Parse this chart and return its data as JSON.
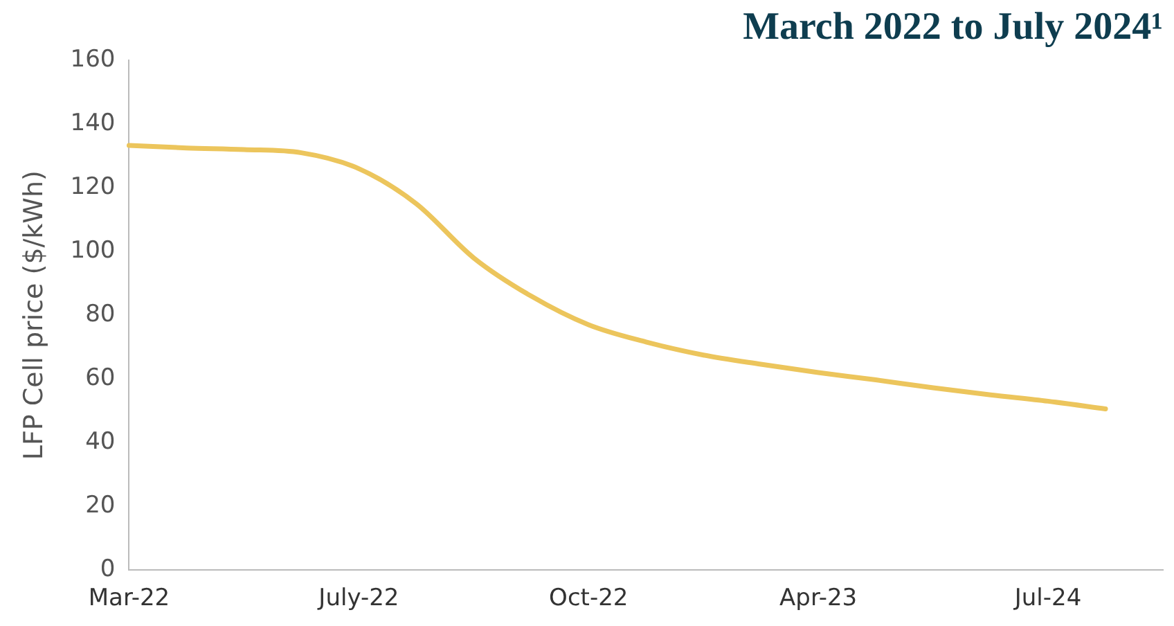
{
  "chart_data": {
    "type": "line",
    "title": "March 2022 to July 2024¹",
    "ylabel": "LFP Cell price ($/kWh)",
    "categories": [
      "Mar-22",
      null,
      null,
      null,
      "July-22",
      null,
      null,
      null,
      "Oct-22",
      null,
      null,
      null,
      "Apr-23",
      null,
      null,
      null,
      "Jul-24",
      null,
      null
    ],
    "series": [
      {
        "color": "#ecc55c",
        "values": [
          133.3,
          132.5,
          132,
          131,
          126,
          115,
          98,
          86,
          77,
          71.6,
          67.5,
          64.6,
          62,
          59.7,
          57.2,
          55,
          53,
          50.6,
          null
        ]
      }
    ],
    "ylim": [
      0,
      160
    ],
    "yticks": [
      0,
      20,
      40,
      60,
      80,
      100,
      120,
      140,
      160
    ],
    "grid": false,
    "legend": false,
    "marker": "none",
    "line_style": "solid"
  }
}
